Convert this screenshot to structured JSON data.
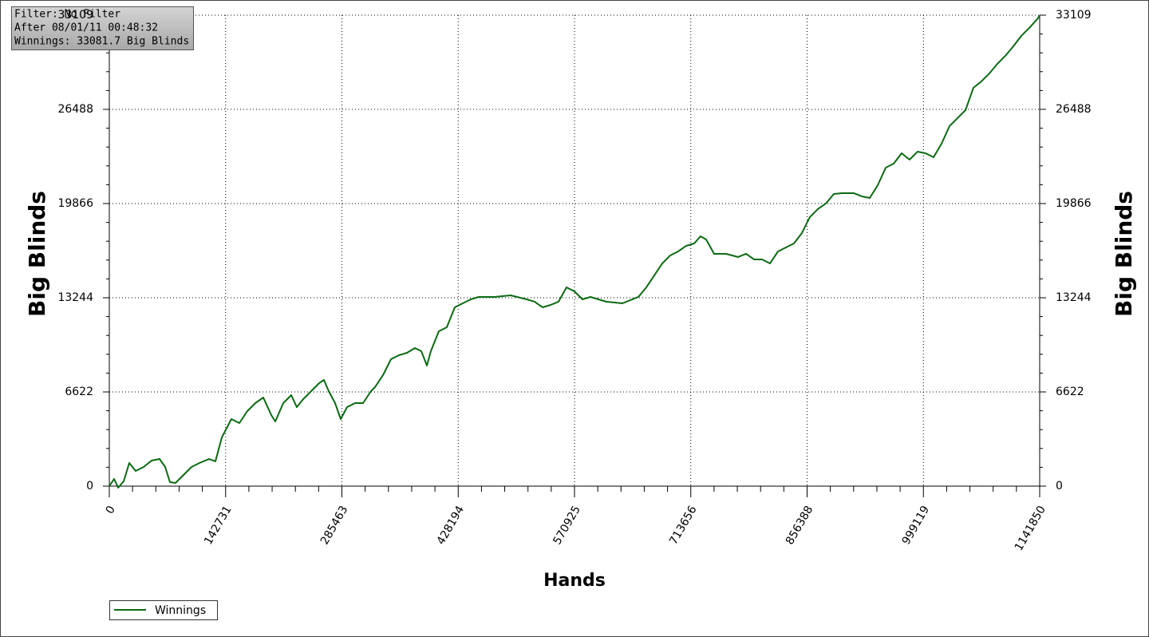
{
  "chart_data": {
    "type": "line",
    "annotations": [
      "Filter: No Filter",
      "After 08/01/11 00:48:32",
      "Winnings: 33081.7 Big Blinds"
    ],
    "x_label": "Hands",
    "y_label": "Big Blinds",
    "y2_label": "Big Blinds",
    "xlim": [
      0,
      1141850
    ],
    "xticks": [
      0,
      142731,
      285463,
      428194,
      570925,
      713656,
      856388,
      999119,
      1141850
    ],
    "ylim": [
      0,
      33109
    ],
    "yticks": [
      0,
      6622,
      13244,
      19866,
      26488,
      33109
    ],
    "y2lim": [
      0,
      33109
    ],
    "y2ticks": [
      0,
      6622,
      13244,
      19866,
      26488,
      33109
    ],
    "grid": true,
    "legend": "bottom-left",
    "x": [
      0,
      5900,
      10800,
      17600,
      24500,
      32300,
      42100,
      51900,
      61700,
      68600,
      74400,
      81300,
      91100,
      100900,
      110700,
      122400,
      130200,
      138100,
      149800,
      159600,
      169400,
      179200,
      189000,
      198800,
      203700,
      213500,
      223300,
      230100,
      238000,
      247800,
      257500,
      263400,
      269300,
      277100,
      284000,
      291800,
      301600,
      311400,
      321200,
      326100,
      335900,
      345700,
      355500,
      365300,
      375100,
      382900,
      389800,
      394600,
      404400,
      414200,
      424000,
      433800,
      443600,
      453400,
      473000,
      492600,
      512200,
      521900,
      531700,
      541600,
      551300,
      561100,
      570900,
      580700,
      590500,
      610100,
      629700,
      649300,
      659100,
      668900,
      678700,
      688400,
      698200,
      708000,
      717800,
      725600,
      732500,
      742300,
      757000,
      771700,
      781500,
      791300,
      801100,
      810900,
      820700,
      830400,
      840200,
      850000,
      859800,
      869600,
      879400,
      889200,
      899000,
      913700,
      923500,
      933300,
      943100,
      952900,
      962700,
      972400,
      982200,
      992000,
      1001800,
      1011600,
      1021400,
      1031200,
      1041000,
      1050800,
      1060500,
      1070300,
      1080100,
      1089900,
      1099700,
      1109500,
      1119300,
      1129100,
      1138900,
      1141850
    ],
    "series": [
      {
        "name": "Winnings",
        "color": "#0b6a12",
        "values": [
          0,
          505,
          -112,
          337,
          1627,
          1066,
          1347,
          1796,
          1908,
          1347,
          281,
          224,
          786,
          1347,
          1627,
          1908,
          1740,
          3423,
          4714,
          4433,
          5275,
          5836,
          6229,
          4995,
          4546,
          5836,
          6398,
          5556,
          6117,
          6678,
          7239,
          7464,
          6678,
          5836,
          4714,
          5556,
          5836,
          5836,
          6678,
          6959,
          7801,
          8923,
          9204,
          9372,
          9709,
          9484,
          8474,
          9484,
          10887,
          11168,
          12571,
          12851,
          13132,
          13300,
          13300,
          13413,
          13132,
          12964,
          12571,
          12739,
          12964,
          13974,
          13693,
          13132,
          13300,
          12964,
          12851,
          13300,
          13974,
          14816,
          15657,
          16219,
          16499,
          16892,
          17060,
          17566,
          17341,
          16331,
          16331,
          16106,
          16331,
          15938,
          15938,
          15657,
          16499,
          16780,
          17060,
          17790,
          18912,
          19474,
          19866,
          20540,
          20596,
          20596,
          20372,
          20259,
          21157,
          22392,
          22672,
          23402,
          22953,
          23514,
          23402,
          23122,
          24075,
          25310,
          25871,
          26432,
          28004,
          28453,
          29014,
          29687,
          30249,
          30922,
          31652,
          32213,
          32830,
          33082
        ]
      }
    ]
  }
}
